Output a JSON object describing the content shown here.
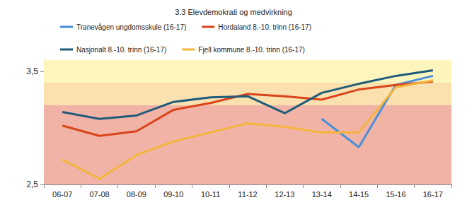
{
  "chart_data": {
    "type": "line",
    "title": "3.3 Elevdemokrati og medvirkning",
    "categories": [
      "06-07",
      "07-08",
      "08-09",
      "09-10",
      "10-11",
      "11-12",
      "12-13",
      "13-14",
      "14-15",
      "15-16",
      "16-17"
    ],
    "series": [
      {
        "name": "Tranevågen ungdomsskule (16-17)",
        "color": "#4a90d9",
        "values": [
          null,
          null,
          null,
          null,
          null,
          null,
          null,
          3.08,
          2.83,
          3.38,
          3.46
        ]
      },
      {
        "name": "Hordaland 8.-10. trinn (16-17)",
        "color": "#d9441a",
        "values": [
          3.02,
          2.93,
          2.97,
          3.16,
          3.22,
          3.3,
          3.28,
          3.25,
          3.34,
          3.38,
          3.41
        ]
      },
      {
        "name": "Nasjonalt 8.-10. trinn (16-17)",
        "color": "#1f5c7a",
        "values": [
          3.14,
          3.08,
          3.11,
          3.23,
          3.27,
          3.28,
          3.13,
          3.31,
          3.39,
          3.46,
          3.51
        ]
      },
      {
        "name": "Fjell kommune 8.-10. trinn (16-17)",
        "color": "#f5b43c",
        "values": [
          2.72,
          2.55,
          2.76,
          2.88,
          2.96,
          3.04,
          3.01,
          2.96,
          2.96,
          3.36,
          3.42
        ]
      }
    ],
    "bands": [
      {
        "from": 2.5,
        "to": 3.2,
        "color": "#f0b3a6"
      },
      {
        "from": 3.2,
        "to": 3.4,
        "color": "#fbe0b0"
      },
      {
        "from": 3.4,
        "to": 3.6,
        "color": "#fdf5be"
      }
    ],
    "ylim": [
      2.5,
      3.6
    ],
    "yticks": [
      {
        "value": 2.5,
        "label": "2,5"
      },
      {
        "value": 3.5,
        "label": "3,5"
      }
    ],
    "grid": false,
    "legend": "top"
  }
}
